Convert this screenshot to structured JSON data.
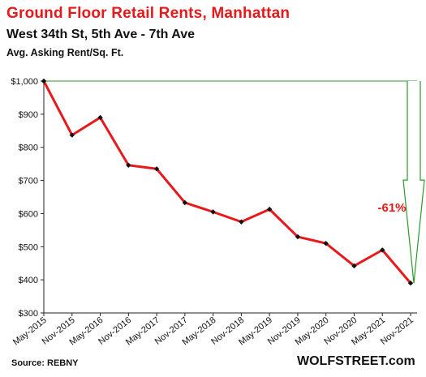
{
  "chart_data": {
    "type": "line",
    "title": "Ground  Floor Retail Rents, Manhattan",
    "subtitle": "West 34th St, 5th Ave - 7th Ave",
    "ylabel": "Avg. Asking Rent/Sq. Ft.",
    "xlabel": "",
    "categories": [
      "May-2015",
      "Nov-2015",
      "May-2016",
      "Nov-2016",
      "May-2017",
      "Nov-2017",
      "May-2018",
      "Nov-2018",
      "May-2019",
      "Nov-2019",
      "May-2020",
      "Nov-2020",
      "May-2021",
      "Nov-2021"
    ],
    "series": [
      {
        "values": [
          1000,
          837,
          890,
          746,
          735,
          633,
          605,
          575,
          613,
          530,
          510,
          442,
          490,
          390
        ]
      }
    ],
    "ylim": [
      300,
      1000
    ],
    "yticks": [
      300,
      400,
      500,
      600,
      700,
      800,
      900,
      1000
    ],
    "ytick_labels": [
      "$300",
      "$400",
      "$500",
      "$600",
      "$700",
      "$800",
      "$900",
      "$1,000"
    ],
    "annotation": {
      "text": "-61%",
      "from": 1000,
      "to": 390
    },
    "grid": false,
    "colors": {
      "line": "#e8191b",
      "marker": "#111111",
      "annotation": "#e8191b",
      "arrow": "#2a9a2a"
    }
  },
  "source": "Source: REBNY",
  "site": "WOLFSTREET.com"
}
